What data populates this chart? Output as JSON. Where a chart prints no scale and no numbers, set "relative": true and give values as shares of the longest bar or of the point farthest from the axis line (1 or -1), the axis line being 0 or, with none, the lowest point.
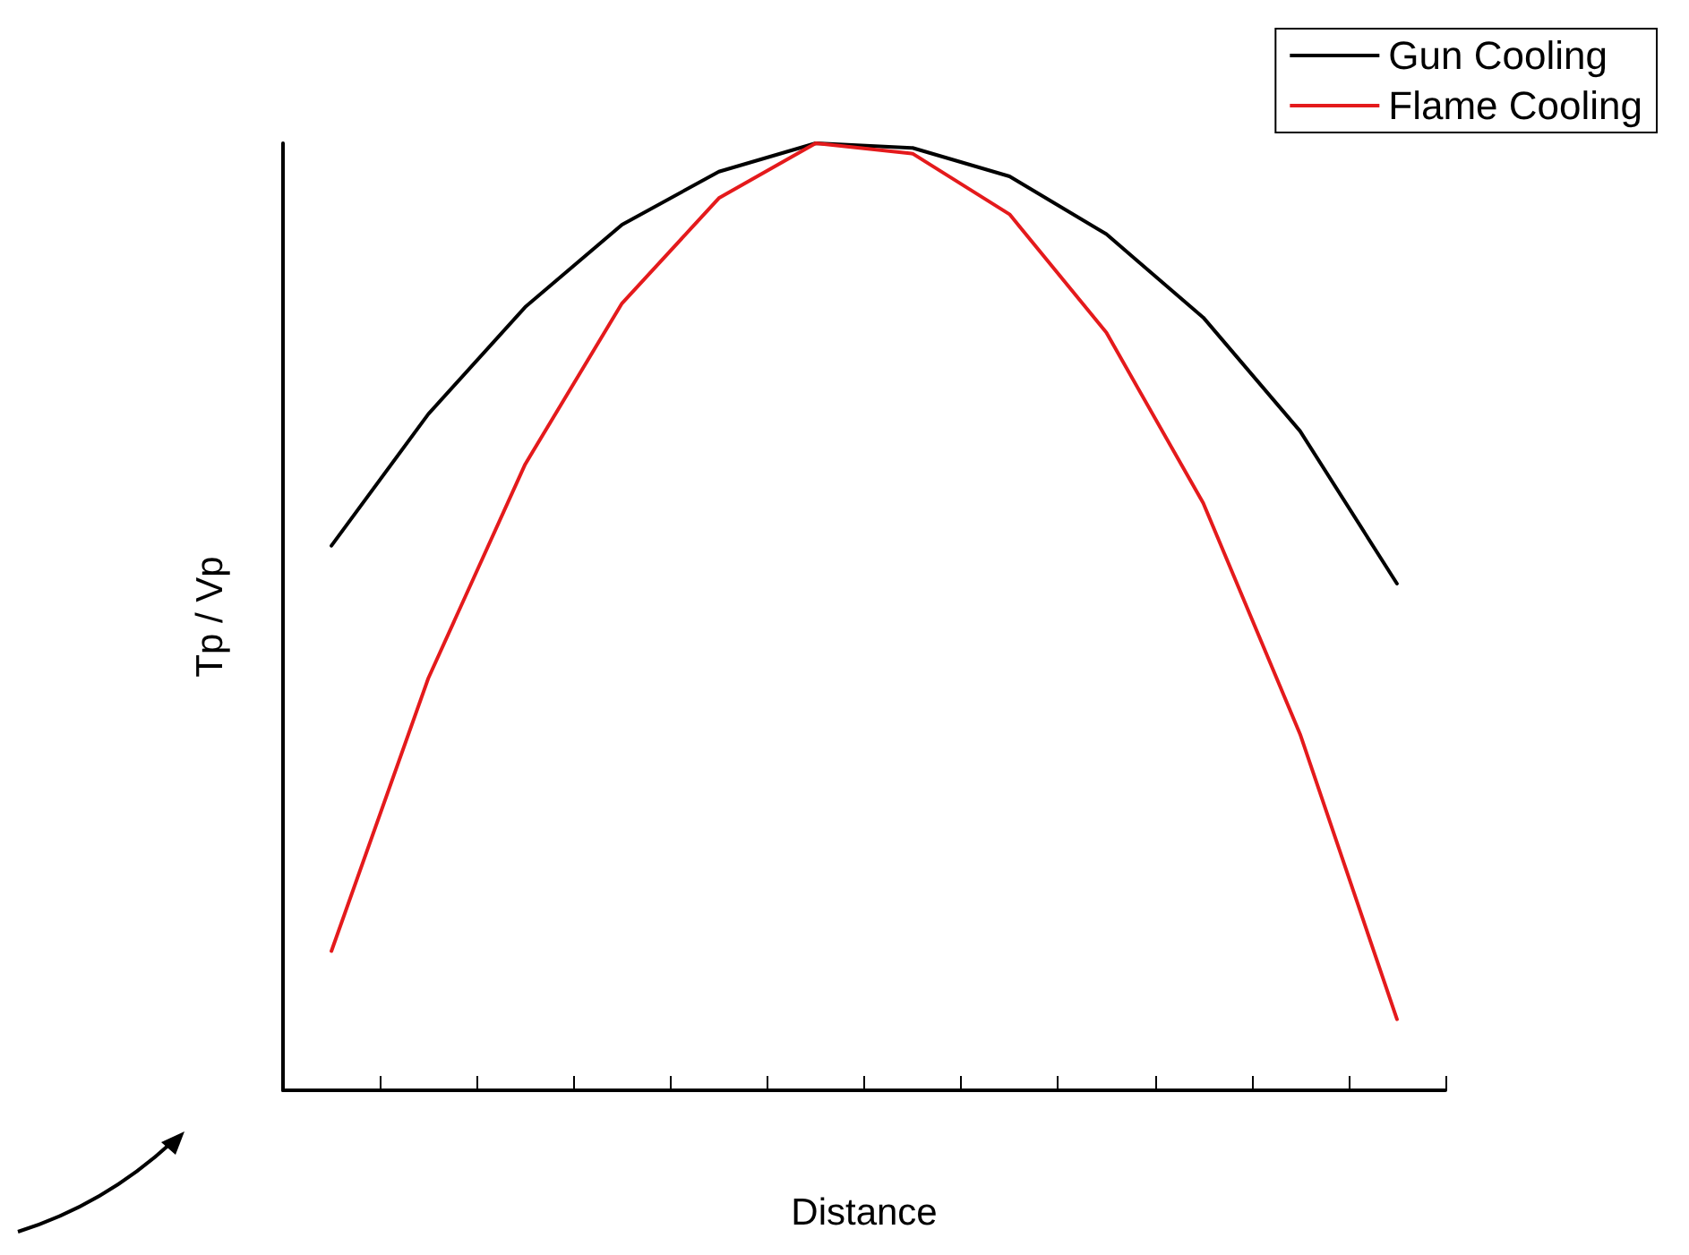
{
  "chart_data": {
    "type": "line",
    "relative": true,
    "xlabel": "Distance",
    "ylabel": "Tp / Vp",
    "categories": [
      null,
      null,
      null,
      null,
      null,
      null,
      null,
      null,
      null,
      null,
      null,
      null
    ],
    "series": [
      {
        "name": "Gun Cooling",
        "color": "#000000",
        "values": [
          0.575,
          0.714,
          0.827,
          0.914,
          0.97,
          1,
          0.995,
          0.965,
          0.904,
          0.816,
          0.696,
          0.535
        ]
      },
      {
        "name": "Flame Cooling",
        "color": "#e41a1c",
        "values": [
          0.147,
          0.435,
          0.661,
          0.831,
          0.942,
          1,
          0.989,
          0.925,
          0.8,
          0.62,
          0.376,
          0.075
        ]
      }
    ],
    "legend": "top right",
    "grid": false,
    "marker": "none",
    "line_style": "solid"
  }
}
